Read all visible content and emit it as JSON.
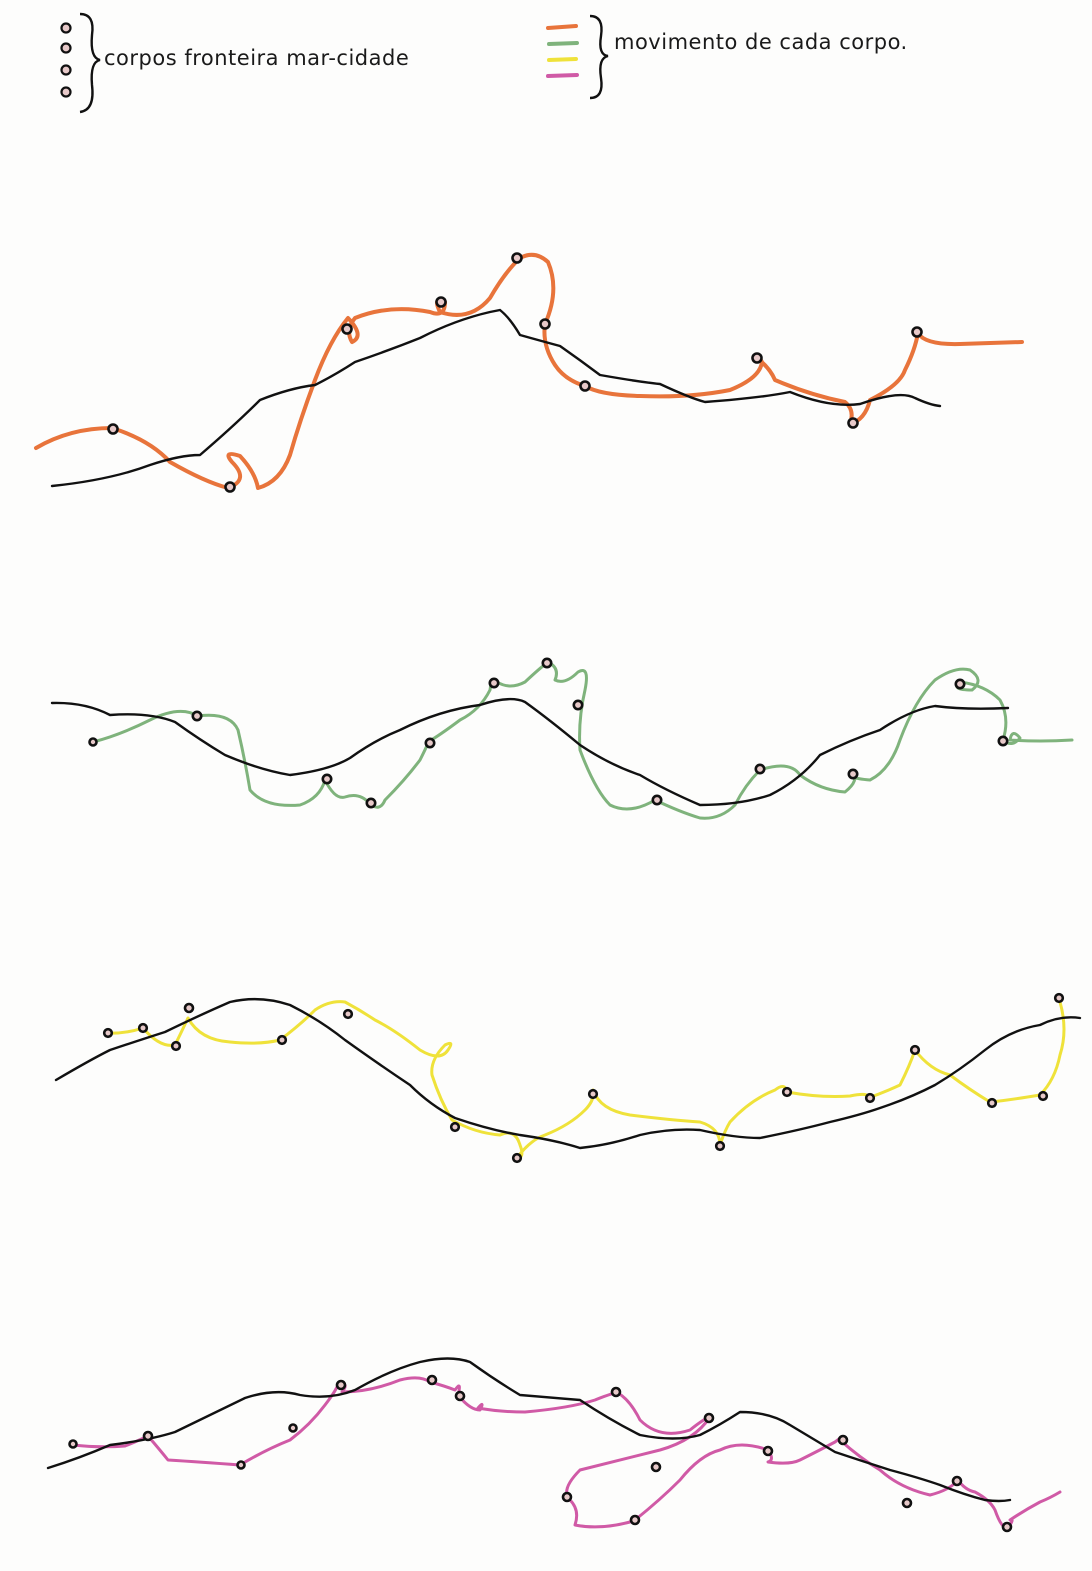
{
  "legend": {
    "bodies_label": "corpos fronteira mar-cidade",
    "movement_label": "movimento de cada corpo."
  },
  "colors": {
    "border_line": "#111111",
    "body_dot_fill": "#e7c9c9",
    "orange": "#e8743b",
    "green": "#7fb37c",
    "yellow": "#efe23a",
    "pink": "#d05aa6"
  },
  "panels": [
    {
      "id": "orange",
      "color_key": "orange"
    },
    {
      "id": "green",
      "color_key": "green"
    },
    {
      "id": "yellow",
      "color_key": "yellow"
    },
    {
      "id": "pink",
      "color_key": "pink"
    }
  ]
}
